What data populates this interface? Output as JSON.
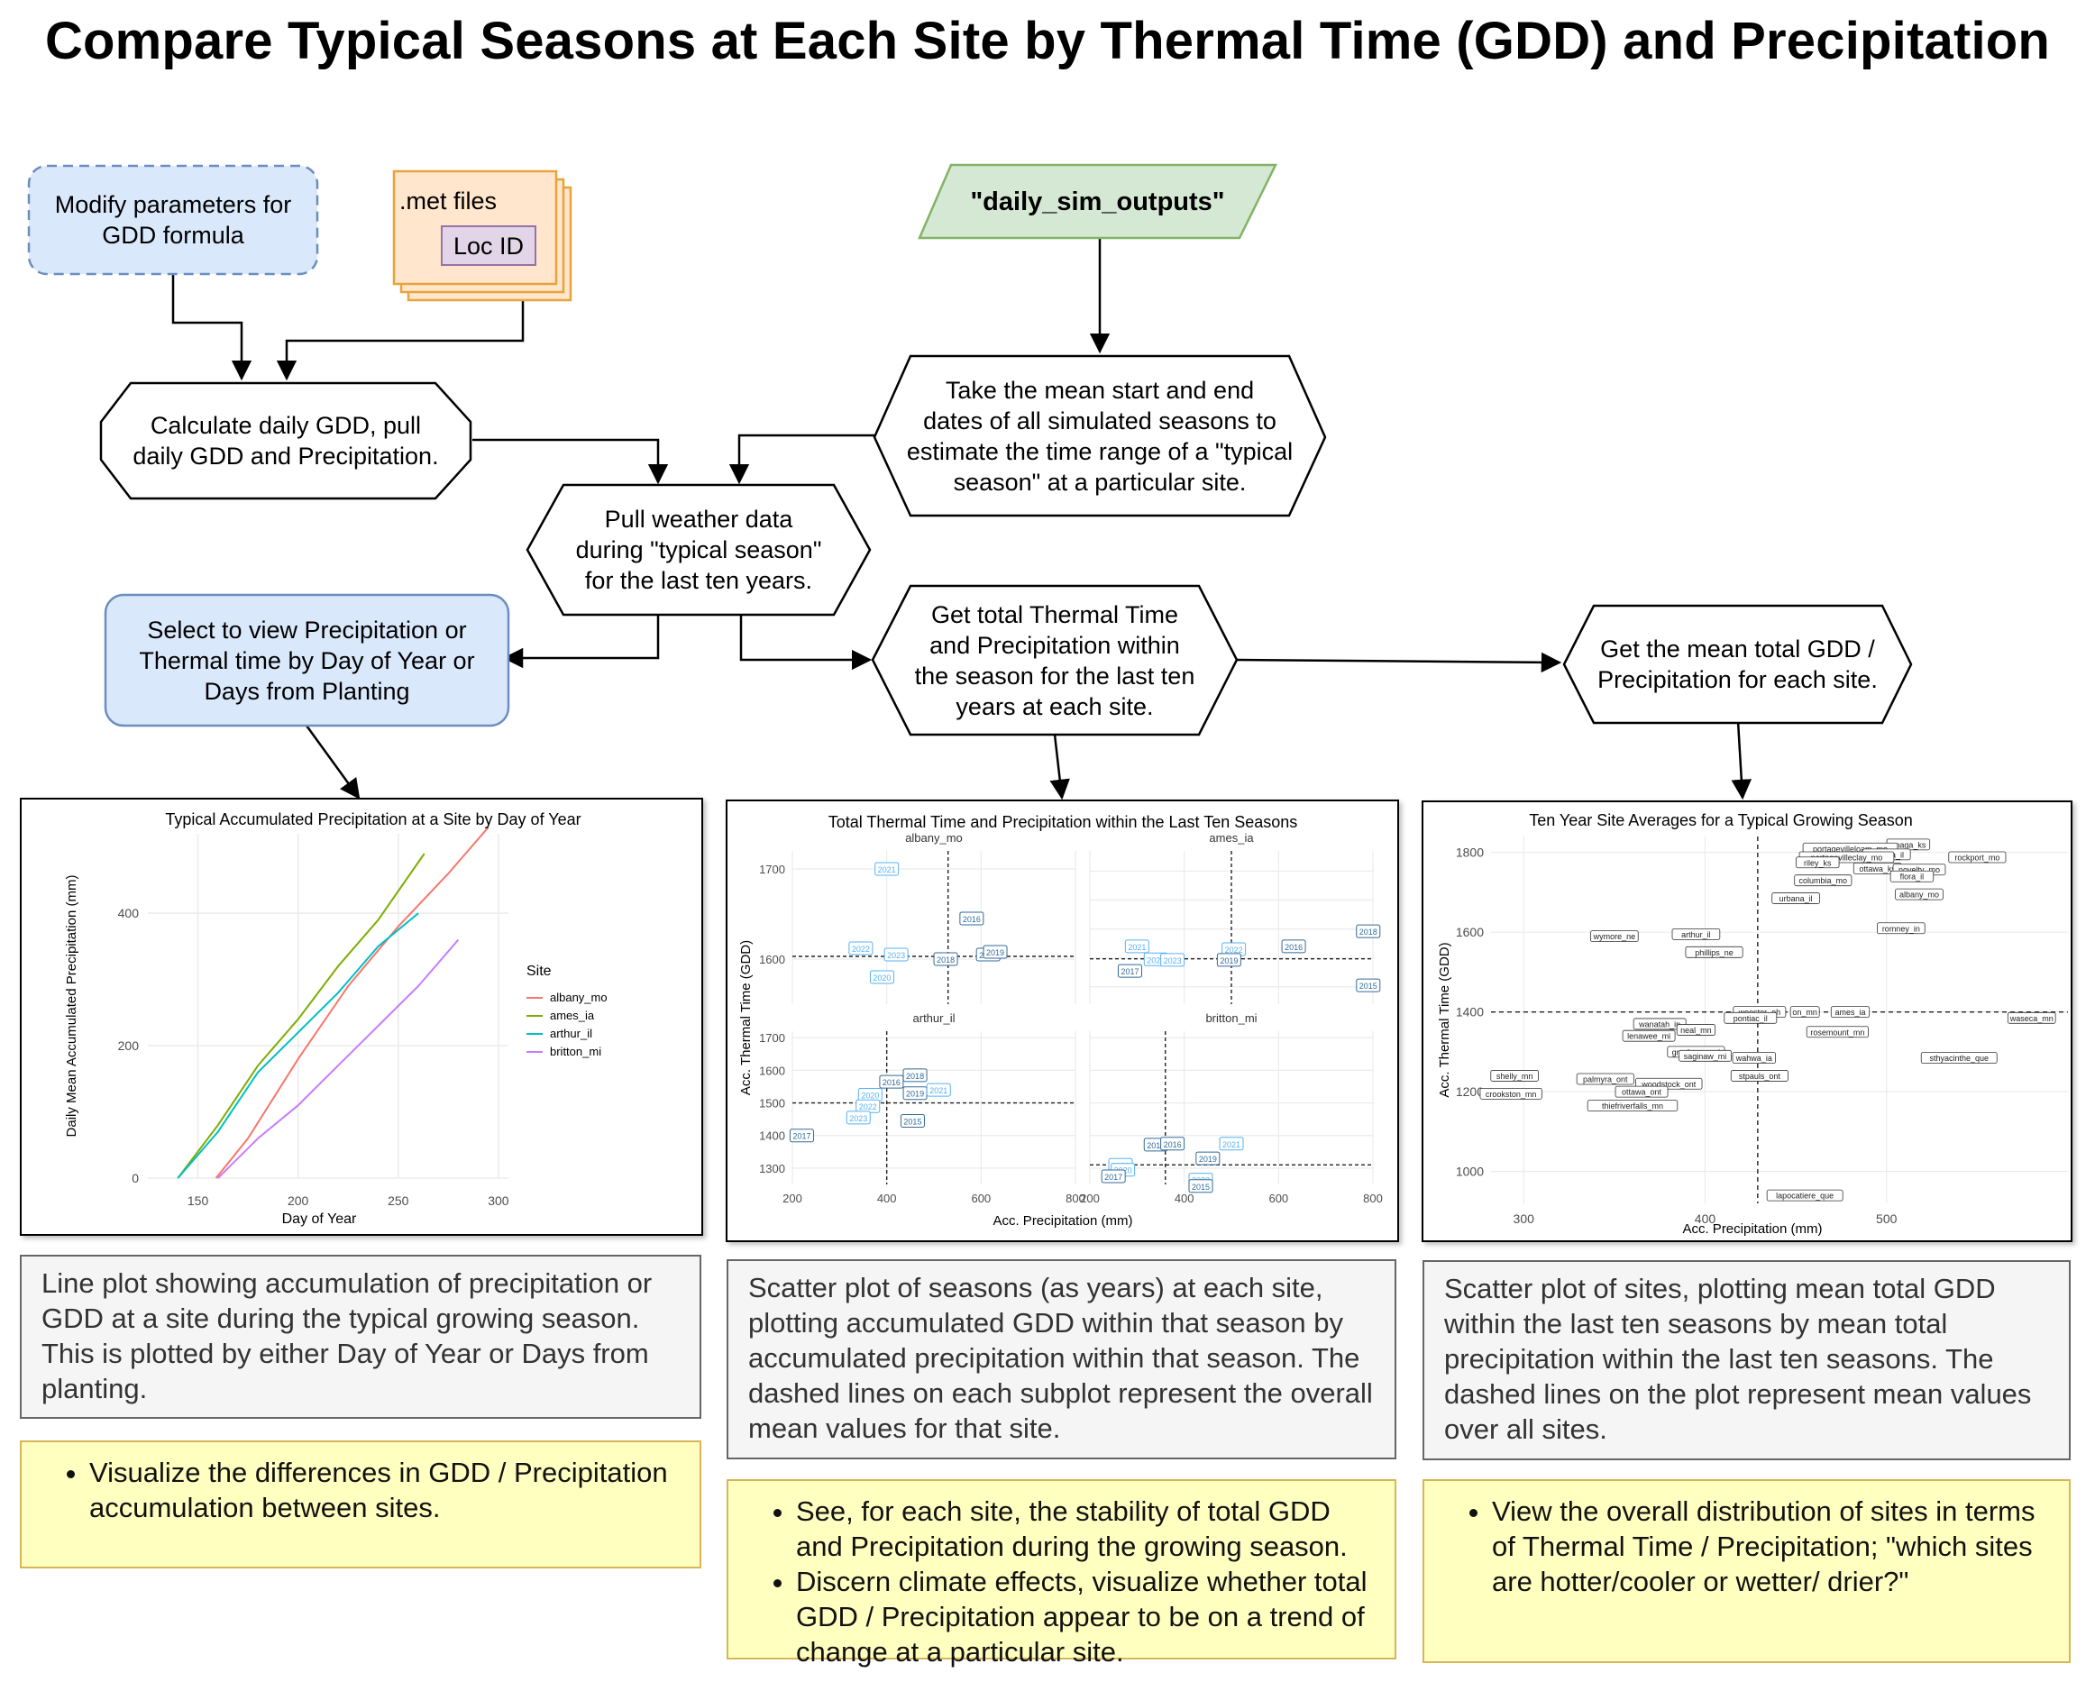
{
  "title": "Compare Typical Seasons at Each Site by Thermal Time (GDD) and Precipitation",
  "nodes": {
    "modify_params": "Modify parameters for\nGDD formula",
    "met_files": ".met files",
    "loc_id": "Loc ID",
    "daily_sim_outputs": "\"daily_sim_outputs\"",
    "calc_gdd": "Calculate daily GDD, pull\ndaily GDD and Precipitation.",
    "take_mean": "Take the mean start and end\ndates of all simulated seasons to\nestimate the time range of a \"typical\nseason\" at a particular site.",
    "pull_weather": "Pull weather data\nduring \"typical season\"\nfor the last ten years.",
    "select_view": "Select to view Precipitation or\nThermal time by Day of Year or\nDays from Planting",
    "get_total": "Get total Thermal Time\nand Precipitation within\nthe season for the last ten\nyears at each site.",
    "get_mean": "Get the mean total GDD /\nPrecipitation for each site."
  },
  "descriptions": {
    "line": "Line plot showing accumulation of precipitation or GDD at a site during the typical growing season. This is plotted by either Day of Year or Days from planting.",
    "scatter_seasons": "Scatter plot of seasons (as years) at each site, plotting accumulated GDD within that season by accumulated precipitation within that season. The dashed lines on each subplot represent the overall mean values for that site.",
    "scatter_sites": "Scatter plot of sites, plotting mean total GDD within the last ten seasons by mean total precipitation within the last ten seasons. The dashed lines on the plot represent mean values over all sites."
  },
  "goals": {
    "line": [
      "Visualize the differences in GDD / Precipitation accumulation between sites."
    ],
    "scatter_seasons": [
      "See, for each site, the stability of total GDD and Precipitation during the growing season.",
      "Discern climate effects, visualize whether total GDD / Precipitation appear to be on a trend of change at a particular site."
    ],
    "scatter_sites": [
      "View the overall distribution of sites in terms of Thermal Time / Precipitation; \"which sites are hotter/cooler or wetter/ drier?\""
    ]
  },
  "chart_data": [
    {
      "type": "line",
      "title": "Typical Accumulated Precipitation at a Site by Day of Year",
      "xlabel": "Day of Year",
      "ylabel": "Daily Mean Accumulated Precipitation (mm)",
      "xlim": [
        125,
        305
      ],
      "ylim": [
        0,
        520
      ],
      "xticks": [
        150,
        200,
        250,
        300
      ],
      "yticks": [
        0,
        200,
        400
      ],
      "grid": true,
      "legend": {
        "title": "Site",
        "placement": "right"
      },
      "series": [
        {
          "name": "albany_mo",
          "color": "#f8766d",
          "points": [
            [
              159,
              0
            ],
            [
              175,
              60
            ],
            [
              200,
              180
            ],
            [
              225,
              290
            ],
            [
              250,
              380
            ],
            [
              275,
              460
            ],
            [
              295,
              530
            ]
          ]
        },
        {
          "name": "ames_ia",
          "color": "#7cae00",
          "points": [
            [
              140,
              0
            ],
            [
              160,
              80
            ],
            [
              180,
              170
            ],
            [
              200,
              240
            ],
            [
              220,
              320
            ],
            [
              240,
              390
            ],
            [
              263,
              490
            ]
          ]
        },
        {
          "name": "arthur_il",
          "color": "#00bfc4",
          "points": [
            [
              140,
              0
            ],
            [
              160,
              70
            ],
            [
              180,
              160
            ],
            [
              200,
              220
            ],
            [
              220,
              280
            ],
            [
              240,
              350
            ],
            [
              260,
              400
            ]
          ]
        },
        {
          "name": "britton_mi",
          "color": "#c77cff",
          "points": [
            [
              160,
              0
            ],
            [
              180,
              60
            ],
            [
              200,
              110
            ],
            [
              220,
              170
            ],
            [
              240,
              230
            ],
            [
              260,
              290
            ],
            [
              280,
              360
            ]
          ]
        }
      ]
    },
    {
      "type": "scatter",
      "title": "Total Thermal Time and Precipitation within the Last Ten Seasons",
      "xlabel": "Acc. Precipitation (mm)",
      "ylabel": "Acc. Thermal Time (GDD)",
      "facet_xlim": [
        200,
        800
      ],
      "xticks": [
        200,
        400,
        600,
        800
      ],
      "grid": true,
      "facets": [
        {
          "name": "albany_mo",
          "ylim": [
            1550,
            1720
          ],
          "yticks": [
            1600,
            1700
          ],
          "xmean": 530,
          "ymean": 1603,
          "points": [
            {
              "x": 400,
              "y": 1700,
              "label": "2021"
            },
            {
              "x": 345,
              "y": 1612,
              "label": "2022"
            },
            {
              "x": 420,
              "y": 1605,
              "label": "2023"
            },
            {
              "x": 390,
              "y": 1580,
              "label": "2020"
            },
            {
              "x": 580,
              "y": 1645,
              "label": "2016"
            },
            {
              "x": 525,
              "y": 1600,
              "label": "2018"
            },
            {
              "x": 615,
              "y": 1605,
              "label": "2017"
            },
            {
              "x": 630,
              "y": 1608,
              "label": "2019"
            }
          ]
        },
        {
          "name": "ames_ia",
          "ylim": [
            1240,
            1770
          ],
          "yticks": [
            1300,
            1400,
            1500,
            1600,
            1700
          ],
          "xmean": 500,
          "ymean": 1397,
          "points": [
            {
              "x": 300,
              "y": 1440,
              "label": "2021"
            },
            {
              "x": 340,
              "y": 1395,
              "label": "2020"
            },
            {
              "x": 375,
              "y": 1393,
              "label": "2023"
            },
            {
              "x": 285,
              "y": 1355,
              "label": "2017"
            },
            {
              "x": 505,
              "y": 1430,
              "label": "2022"
            },
            {
              "x": 495,
              "y": 1393,
              "label": "2019"
            },
            {
              "x": 632,
              "y": 1440,
              "label": "2016"
            },
            {
              "x": 790,
              "y": 1492,
              "label": "2018"
            },
            {
              "x": 790,
              "y": 1305,
              "label": "2015"
            }
          ]
        },
        {
          "name": "arthur_il",
          "ylim": [
            1250,
            1720
          ],
          "yticks": [
            1300,
            1400,
            1500,
            1600,
            1700
          ],
          "xmean": 400,
          "ymean": 1500,
          "points": [
            {
              "x": 410,
              "y": 1565,
              "label": "2016"
            },
            {
              "x": 460,
              "y": 1585,
              "label": "2018"
            },
            {
              "x": 460,
              "y": 1530,
              "label": "2019"
            },
            {
              "x": 510,
              "y": 1540,
              "label": "2021"
            },
            {
              "x": 365,
              "y": 1525,
              "label": "2020"
            },
            {
              "x": 360,
              "y": 1490,
              "label": "2022"
            },
            {
              "x": 340,
              "y": 1455,
              "label": "2023"
            },
            {
              "x": 220,
              "y": 1400,
              "label": "2017"
            },
            {
              "x": 455,
              "y": 1445,
              "label": "2015"
            }
          ]
        },
        {
          "name": "britton_mi",
          "ylim": [
            1250,
            1720
          ],
          "yticks": [
            1300,
            1400,
            1500,
            1600,
            1700
          ],
          "xmean": 360,
          "ymean": 1310,
          "points": [
            {
              "x": 340,
              "y": 1372,
              "label": "2018"
            },
            {
              "x": 375,
              "y": 1375,
              "label": "2016"
            },
            {
              "x": 500,
              "y": 1375,
              "label": "2021"
            },
            {
              "x": 450,
              "y": 1330,
              "label": "2019"
            },
            {
              "x": 265,
              "y": 1310,
              "label": "2023"
            },
            {
              "x": 270,
              "y": 1295,
              "label": "2020"
            },
            {
              "x": 250,
              "y": 1275,
              "label": "2017"
            },
            {
              "x": 435,
              "y": 1265,
              "label": "2022"
            },
            {
              "x": 435,
              "y": 1245,
              "label": "2015"
            }
          ]
        }
      ]
    },
    {
      "type": "scatter",
      "title": "Ten Year Site Averages for a Typical Growing Season",
      "xlabel": "Acc. Precipitation (mm)",
      "ylabel": "Acc. Thermal Time (GDD)",
      "xlim": [
        282,
        600
      ],
      "ylim": [
        920,
        1840
      ],
      "xticks": [
        300,
        400,
        500
      ],
      "yticks": [
        1000,
        1200,
        1400,
        1600,
        1800
      ],
      "xmean": 429,
      "ymean": 1400,
      "grid": true,
      "points": [
        {
          "x": 512,
          "y": 1820,
          "label": "onaga_ks"
        },
        {
          "x": 480,
          "y": 1810,
          "label": "portagevilleloam_mo"
        },
        {
          "x": 500,
          "y": 1795,
          "label": "nevaga_il"
        },
        {
          "x": 478,
          "y": 1788,
          "label": "portagevilleclay_mo"
        },
        {
          "x": 550,
          "y": 1788,
          "label": "rockport_mo"
        },
        {
          "x": 462,
          "y": 1775,
          "label": "riley_ks"
        },
        {
          "x": 495,
          "y": 1760,
          "label": "ottawa_ks"
        },
        {
          "x": 518,
          "y": 1757,
          "label": "novelty_mo"
        },
        {
          "x": 514,
          "y": 1740,
          "label": "flora_il"
        },
        {
          "x": 465,
          "y": 1730,
          "label": "columbia_mo"
        },
        {
          "x": 450,
          "y": 1685,
          "label": "urbana_il"
        },
        {
          "x": 518,
          "y": 1695,
          "label": "albany_mo"
        },
        {
          "x": 508,
          "y": 1610,
          "label": "romney_in"
        },
        {
          "x": 350,
          "y": 1590,
          "label": "wymore_ne"
        },
        {
          "x": 395,
          "y": 1595,
          "label": "arthur_il"
        },
        {
          "x": 405,
          "y": 1550,
          "label": "phillips_ne"
        },
        {
          "x": 430,
          "y": 1400,
          "label": "wooster_oh"
        },
        {
          "x": 455,
          "y": 1400,
          "label": "on_mn"
        },
        {
          "x": 480,
          "y": 1400,
          "label": "ames_ia"
        },
        {
          "x": 580,
          "y": 1385,
          "label": "waseca_mn"
        },
        {
          "x": 425,
          "y": 1385,
          "label": "pontiac_il"
        },
        {
          "x": 375,
          "y": 1370,
          "label": "wanatah_in"
        },
        {
          "x": 395,
          "y": 1355,
          "label": "neal_mn"
        },
        {
          "x": 473,
          "y": 1350,
          "label": "rosemount_mn"
        },
        {
          "x": 369,
          "y": 1340,
          "label": "lenawee_mi"
        },
        {
          "x": 395,
          "y": 1300,
          "label": "greshawe_mi"
        },
        {
          "x": 400,
          "y": 1290,
          "label": "saginaw_mi"
        },
        {
          "x": 427,
          "y": 1285,
          "label": "wahwa_ia"
        },
        {
          "x": 540,
          "y": 1285,
          "label": "sthyacinthe_que"
        },
        {
          "x": 295,
          "y": 1240,
          "label": "shelly_mn"
        },
        {
          "x": 345,
          "y": 1232,
          "label": "palmyra_ont"
        },
        {
          "x": 430,
          "y": 1240,
          "label": "stpauls_ont"
        },
        {
          "x": 380,
          "y": 1220,
          "label": "woodstock_ont"
        },
        {
          "x": 365,
          "y": 1200,
          "label": "ottawa_ont"
        },
        {
          "x": 293,
          "y": 1195,
          "label": "crookston_mn"
        },
        {
          "x": 360,
          "y": 1165,
          "label": "thiefriverfalls_mn"
        },
        {
          "x": 455,
          "y": 940,
          "label": "lapocatiere_que"
        }
      ]
    }
  ]
}
